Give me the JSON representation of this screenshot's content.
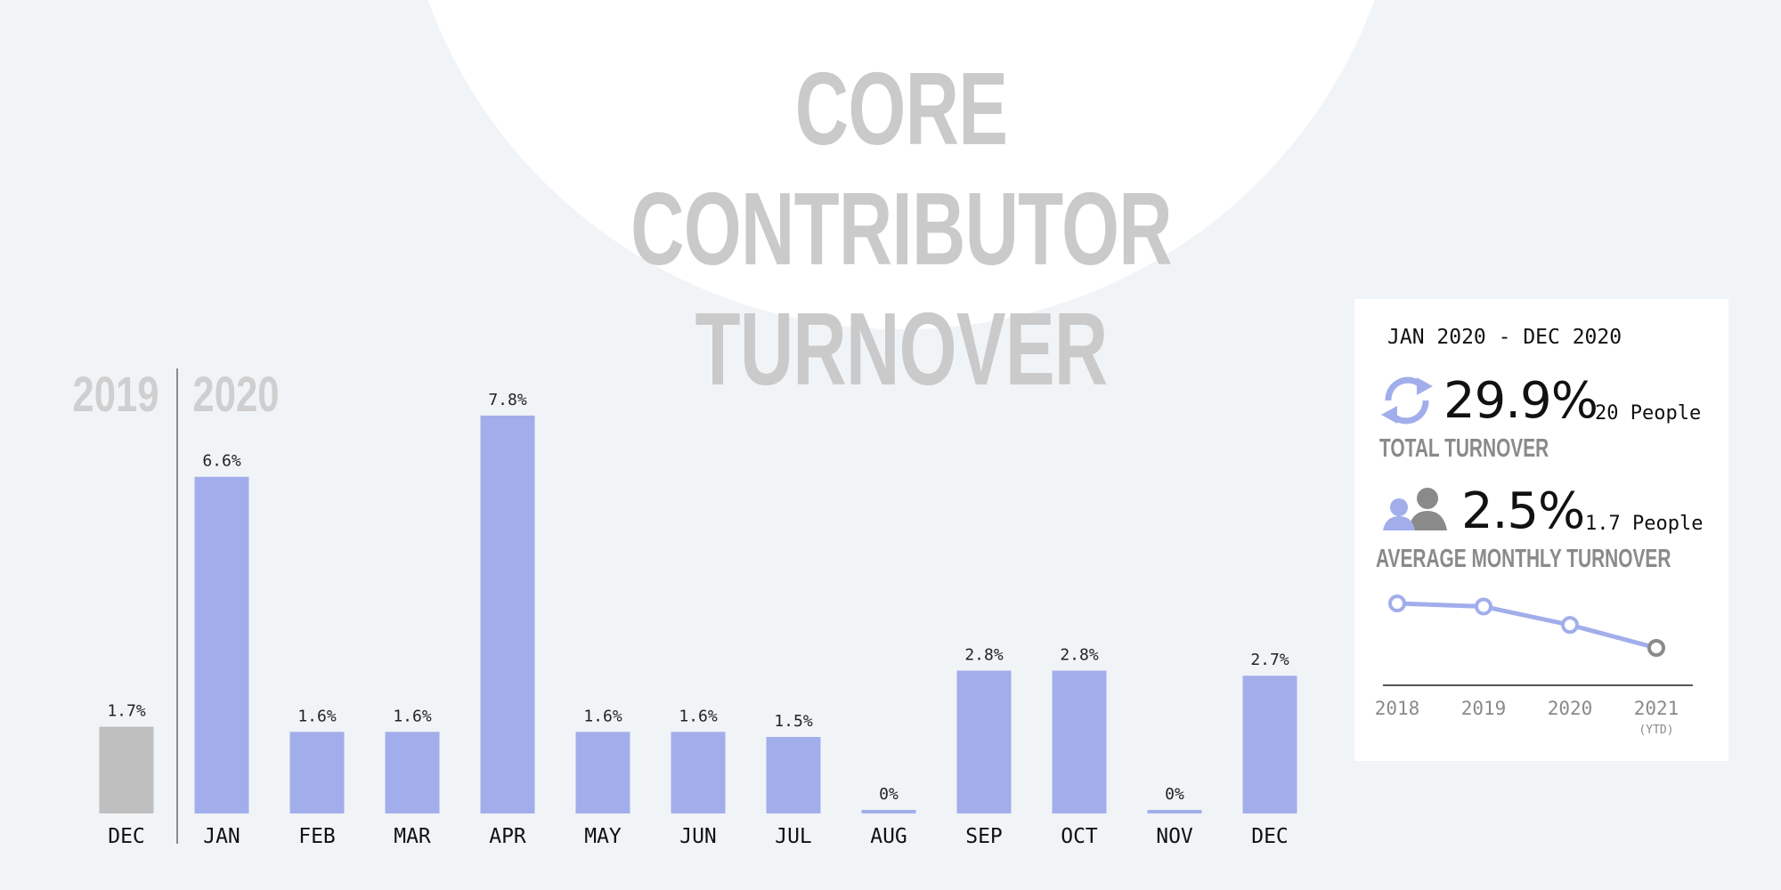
{
  "title": {
    "line1": "CORE CONTRIBUTOR",
    "line2": "TURNOVER"
  },
  "chart_data": [
    {
      "type": "bar",
      "year_labels": [
        "2019",
        "2020"
      ],
      "categories": [
        "DEC",
        "JAN",
        "FEB",
        "MAR",
        "APR",
        "MAY",
        "JUN",
        "JUL",
        "AUG",
        "SEP",
        "OCT",
        "NOV",
        "DEC"
      ],
      "years": [
        "2019",
        "2020",
        "2020",
        "2020",
        "2020",
        "2020",
        "2020",
        "2020",
        "2020",
        "2020",
        "2020",
        "2020",
        "2020"
      ],
      "values": [
        1.7,
        6.6,
        1.6,
        1.6,
        7.8,
        1.6,
        1.6,
        1.5,
        0,
        2.8,
        2.8,
        0,
        2.7
      ],
      "value_labels": [
        "1.7%",
        "6.6%",
        "1.6%",
        "1.6%",
        "7.8%",
        "1.6%",
        "1.6%",
        "1.5%",
        "0%",
        "2.8%",
        "2.8%",
        "0%",
        "2.7%"
      ],
      "ylim": [
        0,
        8.2
      ],
      "colors": {
        "prior_year": "#bfbfbf",
        "current_year": "#a2aeeb"
      }
    },
    {
      "type": "line",
      "x": [
        "2018",
        "2019",
        "2020",
        "2021"
      ],
      "x_notes": [
        "",
        "",
        "",
        "(YTD)"
      ],
      "values": [
        3.9,
        3.7,
        2.5,
        1.0
      ],
      "colors": {
        "line": "#a2aeeb",
        "last_point": "#8a8a8a"
      }
    }
  ],
  "summary": {
    "range": "JAN 2020 - DEC 2020",
    "total": {
      "icon": "refresh-icon",
      "pct": "29.9%",
      "people": "20 People",
      "label": "TOTAL TURNOVER"
    },
    "average": {
      "icon": "people-icon",
      "pct": "2.5%",
      "people": "1.7 People",
      "label": "AVERAGE MONTHLY TURNOVER"
    }
  }
}
